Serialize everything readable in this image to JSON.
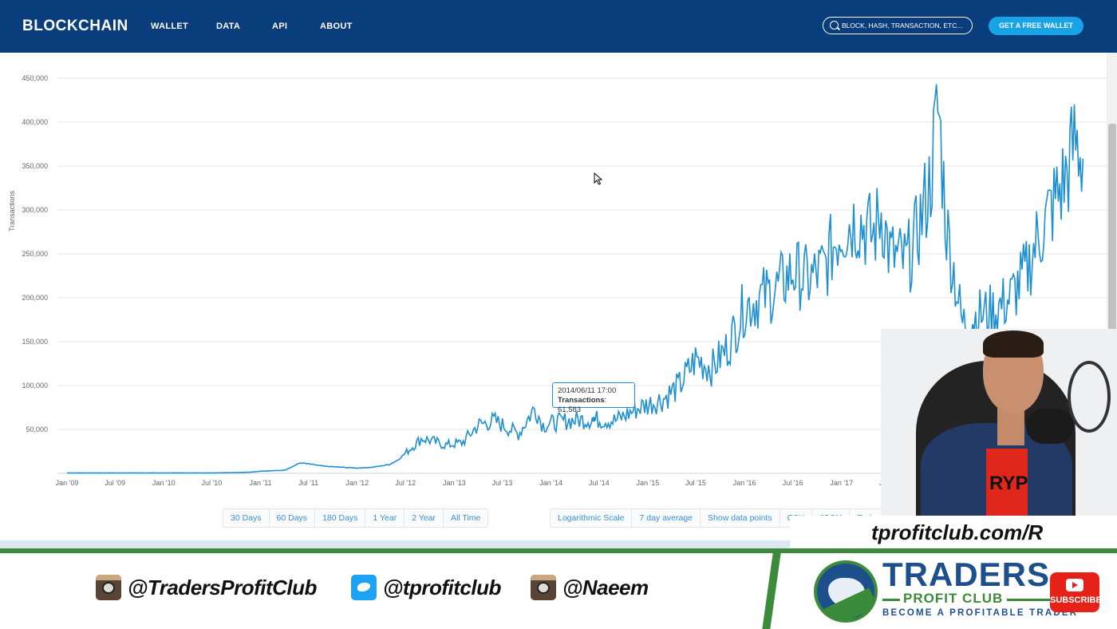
{
  "nav": {
    "brand": "BLOCKCHAIN",
    "links": [
      "WALLET",
      "DATA",
      "API",
      "ABOUT"
    ],
    "search_placeholder": "BLOCK, HASH, TRANSACTION, ETC...",
    "cta": "GET A FREE WALLET",
    "bg_color": "#0a3d7c",
    "cta_color": "#18a3e6"
  },
  "chart_data": {
    "type": "line",
    "ylabel": "Transactions",
    "ylim": [
      0,
      450000
    ],
    "yticks": [
      50000,
      100000,
      150000,
      200000,
      250000,
      300000,
      350000,
      400000,
      450000
    ],
    "ytick_labels": [
      "50,000",
      "100,000",
      "150,000",
      "200,000",
      "250,000",
      "300,000",
      "350,000",
      "400,000",
      "450,000"
    ],
    "xtick_labels": [
      "Jan '09",
      "Jul '09",
      "Jan '10",
      "Jul '10",
      "Jan '11",
      "Jul '11",
      "Jan '12",
      "Jul '12",
      "Jan '13",
      "Jul '13",
      "Jan '14",
      "Jul '14",
      "Jan '15",
      "Jul '15",
      "Jan '16",
      "Jul '16",
      "Jan '17",
      "Jul '17"
    ],
    "grid": true,
    "line_color": "#1c8fd4",
    "series": [
      {
        "x": [
          "2009-01",
          "2009-07",
          "2010-01",
          "2010-07",
          "2010-10",
          "2010-12",
          "2011-01",
          "2011-04",
          "2011-06",
          "2011-09",
          "2012-01",
          "2012-03",
          "2012-05",
          "2012-06",
          "2012-09",
          "2012-12",
          "2013-02",
          "2013-04",
          "2013-06",
          "2013-09",
          "2013-11",
          "2013-12",
          "2014-03",
          "2014-06",
          "2014-09",
          "2014-12",
          "2015-03",
          "2015-05",
          "2015-07",
          "2015-09",
          "2015-11",
          "2016-01",
          "2016-03",
          "2016-05",
          "2016-07",
          "2016-09",
          "2016-11",
          "2016-12",
          "2017-01",
          "2017-03",
          "2017-05",
          "2017-06",
          "2017-07",
          "2017-09",
          "2017-10",
          "2017-12",
          "2018-01",
          "2018-02",
          "2018-03",
          "2018-04",
          "2018-06",
          "2018-08",
          "2018-10",
          "2018-12",
          "2019-01",
          "2019-03",
          "2019-05",
          "2019-06",
          "2019-07"
        ],
        "y": [
          500,
          500,
          500,
          500,
          800,
          1500,
          2500,
          3500,
          12000,
          8000,
          6000,
          7000,
          10000,
          15000,
          40000,
          32000,
          35000,
          55000,
          60000,
          45000,
          75000,
          55000,
          60000,
          61583,
          60000,
          75000,
          85000,
          100000,
          130000,
          120000,
          145000,
          190000,
          200000,
          210000,
          230000,
          220000,
          235000,
          260000,
          280000,
          290000,
          270000,
          300000,
          250000,
          240000,
          260000,
          330000,
          420000,
          280000,
          230000,
          170000,
          180000,
          185000,
          200000,
          230000,
          260000,
          300000,
          340000,
          380000,
          360000
        ]
      }
    ]
  },
  "tooltip": {
    "date": "2014/06/11 17:00",
    "label": "Transactions",
    "value": "61,583"
  },
  "range_buttons": [
    "30 Days",
    "60 Days",
    "180 Days",
    "1 Year",
    "2 Year",
    "All Time"
  ],
  "option_buttons": [
    "Logarithmic Scale",
    "7 day average",
    "Show data points",
    "CSV",
    "JSON",
    "Embed"
  ],
  "overlay": {
    "url": "tprofitclub.com/R",
    "socials": [
      {
        "icon": "instagram-icon",
        "handle": "@TradersProfitClub"
      },
      {
        "icon": "twitter-icon",
        "handle": "@tprofitclub"
      },
      {
        "icon": "instagram-icon",
        "handle": "@Naeem"
      }
    ],
    "logo_title": "TRADERS",
    "logo_sub": "PROFIT CLUB",
    "logo_tag": "BECOME A PROFITABLE TRADER",
    "subscribe": "SUBSCRIBE",
    "shirt_text": "RYP",
    "accent_green": "#3c8b3a"
  }
}
